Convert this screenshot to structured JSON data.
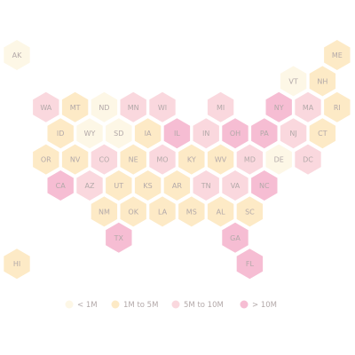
{
  "map": {
    "legend": [
      {
        "label": "< 1M",
        "color": "#fdf7e6"
      },
      {
        "label": "1M to 5M",
        "color": "#fdeac6"
      },
      {
        "label": "5M to 10M",
        "color": "#fad8de"
      },
      {
        "label": "> 10M",
        "color": "#f6bdd3"
      }
    ],
    "states": [
      {
        "label": "AK",
        "category": "< 1M"
      },
      {
        "label": "ME",
        "category": "1M to 5M"
      },
      {
        "label": "VT",
        "category": "< 1M"
      },
      {
        "label": "NH",
        "category": "1M to 5M"
      },
      {
        "label": "WA",
        "category": "5M to 10M"
      },
      {
        "label": "MT",
        "category": "1M to 5M"
      },
      {
        "label": "ND",
        "category": "< 1M"
      },
      {
        "label": "MN",
        "category": "5M to 10M"
      },
      {
        "label": "WI",
        "category": "5M to 10M"
      },
      {
        "label": "MI",
        "category": "5M to 10M"
      },
      {
        "label": "NY",
        "category": "> 10M"
      },
      {
        "label": "MA",
        "category": "5M to 10M"
      },
      {
        "label": "RI",
        "category": "1M to 5M"
      },
      {
        "label": "ID",
        "category": "1M to 5M"
      },
      {
        "label": "WY",
        "category": "< 1M"
      },
      {
        "label": "SD",
        "category": "< 1M"
      },
      {
        "label": "IA",
        "category": "1M to 5M"
      },
      {
        "label": "IL",
        "category": "> 10M"
      },
      {
        "label": "IN",
        "category": "5M to 10M"
      },
      {
        "label": "OH",
        "category": "> 10M"
      },
      {
        "label": "PA",
        "category": "> 10M"
      },
      {
        "label": "NJ",
        "category": "5M to 10M"
      },
      {
        "label": "CT",
        "category": "1M to 5M"
      },
      {
        "label": "OR",
        "category": "1M to 5M"
      },
      {
        "label": "NV",
        "category": "1M to 5M"
      },
      {
        "label": "CO",
        "category": "5M to 10M"
      },
      {
        "label": "NE",
        "category": "1M to 5M"
      },
      {
        "label": "MO",
        "category": "5M to 10M"
      },
      {
        "label": "KY",
        "category": "1M to 5M"
      },
      {
        "label": "WV",
        "category": "1M to 5M"
      },
      {
        "label": "MD",
        "category": "5M to 10M"
      },
      {
        "label": "DE",
        "category": "< 1M"
      },
      {
        "label": "DC",
        "category": "5M to 10M"
      },
      {
        "label": "CA",
        "category": "> 10M"
      },
      {
        "label": "AZ",
        "category": "5M to 10M"
      },
      {
        "label": "UT",
        "category": "1M to 5M"
      },
      {
        "label": "KS",
        "category": "1M to 5M"
      },
      {
        "label": "AR",
        "category": "1M to 5M"
      },
      {
        "label": "TN",
        "category": "5M to 10M"
      },
      {
        "label": "VA",
        "category": "5M to 10M"
      },
      {
        "label": "NC",
        "category": "> 10M"
      },
      {
        "label": "NM",
        "category": "1M to 5M"
      },
      {
        "label": "OK",
        "category": "1M to 5M"
      },
      {
        "label": "LA",
        "category": "1M to 5M"
      },
      {
        "label": "MS",
        "category": "1M to 5M"
      },
      {
        "label": "AL",
        "category": "1M to 5M"
      },
      {
        "label": "SC",
        "category": "1M to 5M"
      },
      {
        "label": "TX",
        "category": "> 10M"
      },
      {
        "label": "GA",
        "category": "> 10M"
      },
      {
        "label": "HI",
        "category": "1M to 5M"
      },
      {
        "label": "FL",
        "category": "> 10M"
      }
    ]
  }
}
